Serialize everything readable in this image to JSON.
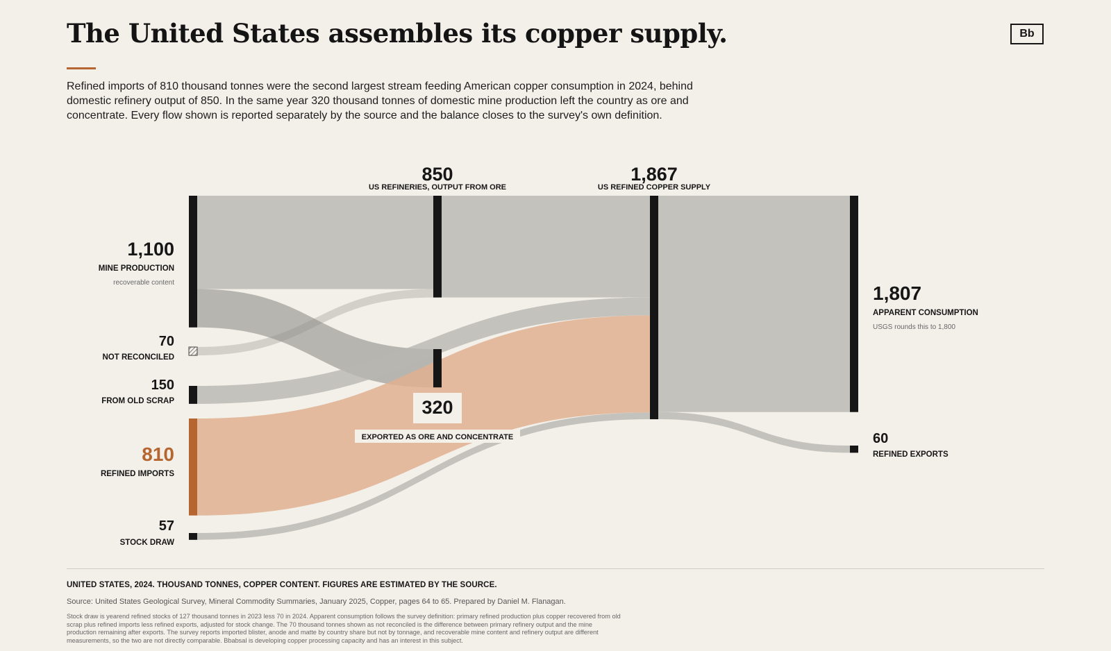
{
  "header": {
    "title": "The United States assembles its copper supply.",
    "logo": "Bb",
    "intro": "Refined imports of 810 thousand tonnes were the second largest stream feeding American copper consumption in 2024, behind domestic refinery output of 850. In the same year 320 thousand tonnes of domestic mine production left the country as ore and concentrate. Every flow shown is reported separately by the source and the balance closes to the survey's own definition."
  },
  "colors": {
    "background": "#f3f0ea",
    "node": "#161616",
    "accent": "#b5652f",
    "flow_gray": "#b8b6b0",
    "flow_import": "#e0b091"
  },
  "chart_data": {
    "type": "sankey",
    "units": "thousand tonnes, copper content",
    "nodes": [
      {
        "id": "mine",
        "value_label": "1,100",
        "value": 1100,
        "label": "MINE PRODUCTION",
        "sublabel": "recoverable content"
      },
      {
        "id": "unrec",
        "value_label": "70",
        "value": 70,
        "label": "NOT RECONCILED",
        "sublabel": ""
      },
      {
        "id": "scrap",
        "value_label": "150",
        "value": 150,
        "label": "FROM OLD SCRAP",
        "sublabel": ""
      },
      {
        "id": "imports",
        "value_label": "810",
        "value": 810,
        "label": "REFINED IMPORTS",
        "sublabel": ""
      },
      {
        "id": "stock",
        "value_label": "57",
        "value": 57,
        "label": "STOCK DRAW",
        "sublabel": ""
      },
      {
        "id": "refineries",
        "value_label": "850",
        "value": 850,
        "label": "US REFINERIES, OUTPUT FROM ORE",
        "sublabel": ""
      },
      {
        "id": "export_ore",
        "value_label": "320",
        "value": 320,
        "label": "EXPORTED AS ORE AND CONCENTRATE",
        "sublabel": ""
      },
      {
        "id": "supply",
        "value_label": "1,867",
        "value": 1867,
        "label": "US REFINED COPPER SUPPLY",
        "sublabel": ""
      },
      {
        "id": "consumption",
        "value_label": "1,807",
        "value": 1807,
        "label": "APPARENT CONSUMPTION",
        "sublabel": "USGS rounds this to 1,800"
      },
      {
        "id": "ref_exports",
        "value_label": "60",
        "value": 60,
        "label": "REFINED EXPORTS",
        "sublabel": ""
      }
    ],
    "links": [
      {
        "source": "mine",
        "target": "refineries",
        "value": 780
      },
      {
        "source": "unrec",
        "target": "refineries",
        "value": 70
      },
      {
        "source": "mine",
        "target": "export_ore",
        "value": 320
      },
      {
        "source": "refineries",
        "target": "supply",
        "value": 850
      },
      {
        "source": "scrap",
        "target": "supply",
        "value": 150
      },
      {
        "source": "imports",
        "target": "supply",
        "value": 810
      },
      {
        "source": "stock",
        "target": "supply",
        "value": 57
      },
      {
        "source": "supply",
        "target": "consumption",
        "value": 1807
      },
      {
        "source": "supply",
        "target": "ref_exports",
        "value": 60
      }
    ]
  },
  "footer": {
    "heading": "UNITED STATES, 2024. THOUSAND TONNES, COPPER CONTENT. FIGURES ARE ESTIMATED BY THE SOURCE.",
    "source": "Source: United States Geological Survey, Mineral Commodity Summaries, January 2025, Copper, pages 64 to 65. Prepared by Daniel M. Flanagan.",
    "note": "Stock draw is yearend refined stocks of 127 thousand tonnes in 2023 less 70 in 2024. Apparent consumption follows the survey definition: primary refined production plus copper recovered from old scrap plus refined imports less refined exports, adjusted for stock change. The 70 thousand tonnes shown as not reconciled is the difference between primary refinery output and the mine production remaining after exports. The survey reports imported blister, anode and matte by country share but not by tonnage, and recoverable mine content and refinery output are different measurements, so the two are not directly comparable. Bbabsal is developing copper processing capacity and has an interest in this subject."
  }
}
